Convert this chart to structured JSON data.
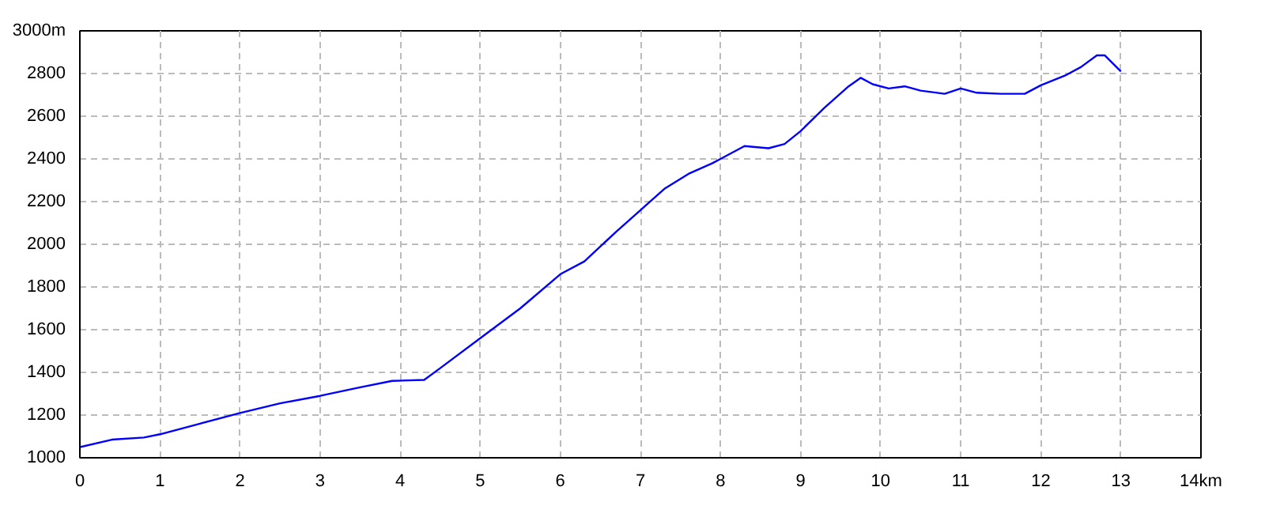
{
  "chart_data": {
    "type": "line",
    "x": [
      0,
      0.4,
      0.8,
      1.0,
      1.5,
      2.0,
      2.5,
      3.0,
      3.5,
      3.9,
      4.3,
      4.5,
      5.0,
      5.5,
      6.0,
      6.3,
      6.7,
      7.0,
      7.3,
      7.6,
      7.9,
      8.0,
      8.3,
      8.6,
      8.8,
      9.0,
      9.3,
      9.6,
      9.75,
      9.9,
      10.1,
      10.3,
      10.5,
      10.8,
      11.0,
      11.2,
      11.5,
      11.8,
      12.0,
      12.3,
      12.5,
      12.7,
      12.8,
      13.0
    ],
    "series": [
      {
        "color": "#0000ff",
        "values": [
          1050,
          1085,
          1095,
          1110,
          1160,
          1210,
          1255,
          1290,
          1330,
          1360,
          1365,
          1420,
          1560,
          1700,
          1860,
          1920,
          2060,
          2160,
          2260,
          2330,
          2380,
          2400,
          2460,
          2450,
          2470,
          2530,
          2640,
          2740,
          2780,
          2750,
          2730,
          2740,
          2720,
          2705,
          2730,
          2710,
          2705,
          2705,
          2745,
          2790,
          2830,
          2885,
          2885,
          2810
        ]
      }
    ],
    "xlim": [
      0,
      14
    ],
    "xticks": [
      0,
      1,
      2,
      3,
      4,
      5,
      6,
      7,
      8,
      9,
      10,
      11,
      12,
      13,
      {
        "value": 14,
        "label": "14km"
      }
    ],
    "ylim": [
      1000,
      3000
    ],
    "yticks": [
      1000,
      1200,
      1400,
      1600,
      1800,
      2000,
      2200,
      2400,
      2600,
      2800,
      {
        "value": 3000,
        "label": "3000m"
      }
    ],
    "grid": true,
    "marker": "none",
    "line_style": "solid"
  }
}
